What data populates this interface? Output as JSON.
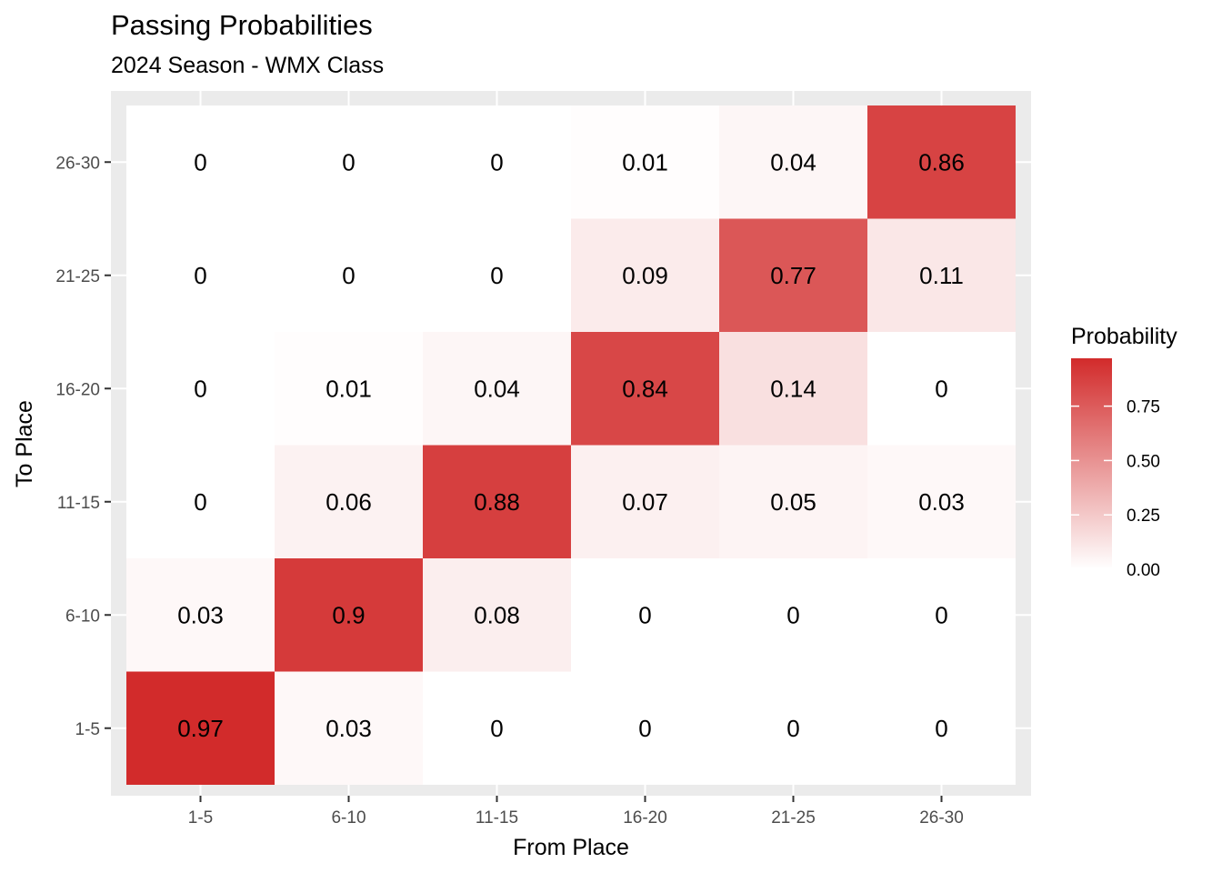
{
  "chart_data": {
    "type": "heatmap",
    "title": "Passing Probabilities",
    "subtitle": "2024 Season - WMX Class",
    "xlabel": "From Place",
    "ylabel": "To Place",
    "x_categories": [
      "1-5",
      "6-10",
      "11-15",
      "16-20",
      "21-25",
      "26-30"
    ],
    "y_categories": [
      "1-5",
      "6-10",
      "11-15",
      "16-20",
      "21-25",
      "26-30"
    ],
    "values": [
      [
        0.97,
        0.03,
        0,
        0,
        0,
        0
      ],
      [
        0.03,
        0.9,
        0.08,
        0,
        0,
        0
      ],
      [
        0,
        0.06,
        0.88,
        0.07,
        0.05,
        0.03
      ],
      [
        0,
        0.01,
        0.04,
        0.84,
        0.14,
        0
      ],
      [
        0,
        0,
        0,
        0.09,
        0.77,
        0.11
      ],
      [
        0,
        0,
        0,
        0.01,
        0.04,
        0.86
      ]
    ],
    "legend": {
      "title": "Probability",
      "ticks": [
        0.0,
        0.25,
        0.5,
        0.75
      ],
      "tick_labels": [
        "0.00",
        "0.25",
        "0.50",
        "0.75"
      ],
      "placement": "right"
    },
    "color_low": "#ffffff",
    "color_high": "#d22b2b",
    "panel_background": "#ebebeb",
    "grid": true
  }
}
